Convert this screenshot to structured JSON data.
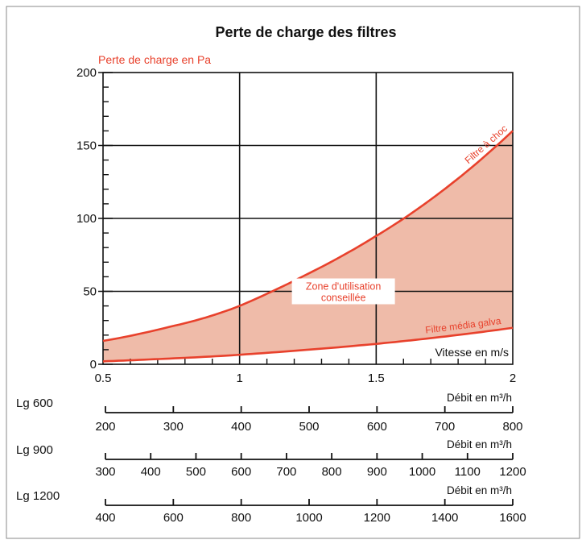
{
  "colors": {
    "curve": "#e8412c",
    "zone_fill": "#efbba9",
    "grid": "#111111",
    "ylabel": "#e8412c",
    "frame": "#888888"
  },
  "chart_data": {
    "type": "area",
    "title": "Perte de charge des filtres",
    "ylabel": "Perte de charge en Pa",
    "xlabel": "Vitesse en m/s",
    "xlim": [
      0.5,
      2
    ],
    "ylim": [
      0,
      200
    ],
    "x_ticks": [
      "0.5",
      "1",
      "1.5",
      "2"
    ],
    "y_ticks": [
      "0",
      "50",
      "100",
      "150",
      "200"
    ],
    "grid": true,
    "series": [
      {
        "name": "Filtre à choc",
        "x": [
          0.5,
          0.75,
          1.0,
          1.25,
          1.5,
          1.75,
          2.0
        ],
        "y": [
          16,
          26,
          40,
          62,
          88,
          120,
          160
        ]
      },
      {
        "name": "Filtre média galva",
        "x": [
          0.5,
          0.75,
          1.0,
          1.25,
          1.5,
          1.75,
          2.0
        ],
        "y": [
          2,
          4,
          6.5,
          10,
          14,
          19,
          25
        ]
      }
    ],
    "zone_label": [
      "Zone d'utilisation",
      "conseillée"
    ],
    "flow_scales": [
      {
        "label": "Lg 600",
        "unit": "Débit en m³/h",
        "ticks": [
          "200",
          "300",
          "400",
          "500",
          "600",
          "700",
          "800"
        ]
      },
      {
        "label": "Lg 900",
        "unit": "Débit en m³/h",
        "ticks": [
          "300",
          "400",
          "500",
          "600",
          "700",
          "800",
          "900",
          "1000",
          "1100",
          "1200"
        ]
      },
      {
        "label": "Lg 1200",
        "unit": "Débit en m³/h",
        "ticks": [
          "400",
          "600",
          "800",
          "1000",
          "1200",
          "1400",
          "1600"
        ]
      }
    ]
  }
}
